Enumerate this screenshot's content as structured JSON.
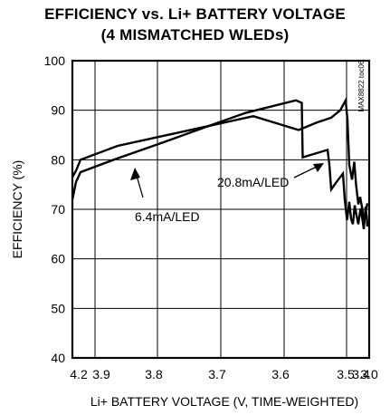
{
  "chart_data": {
    "type": "line",
    "title": "EFFICIENCY vs. Li+ BATTERY VOLTAGE",
    "subtitle": "(4 MISMATCHED WLEDs)",
    "xlabel": "Li+ BATTERY VOLTAGE (V, TIME-WEIGHTED)",
    "ylabel": "EFFICIENCY (%)",
    "watermark": "MAX8822 toc06",
    "x_tick_labels": [
      "4.2",
      "3.9",
      "3.8",
      "3.7",
      "3.6",
      "3.5",
      "3.4",
      "3.0"
    ],
    "y_ticks": [
      40,
      50,
      60,
      70,
      80,
      90,
      100
    ],
    "ylim": [
      40,
      100
    ],
    "grid": true,
    "series": [
      {
        "name": "6.4mA/LED",
        "points": [
          [
            0.0,
            72.0
          ],
          [
            4.0,
            75.5
          ],
          [
            9.0,
            77.5
          ],
          [
            50.0,
            80.3
          ],
          [
            100.0,
            83.5
          ],
          [
            150.0,
            86.8
          ],
          [
            192.0,
            89.5
          ],
          [
            247.0,
            92.0
          ],
          [
            253.5,
            91.5
          ],
          [
            254.5,
            80.5
          ],
          [
            282.0,
            82.0
          ],
          [
            284.0,
            79.0
          ],
          [
            286.0,
            74.0
          ],
          [
            293.0,
            75.8
          ],
          [
            299.0,
            77.2
          ],
          [
            301.0,
            72.0
          ],
          [
            303.5,
            67.8
          ],
          [
            306.0,
            71.5
          ],
          [
            308.0,
            68.0
          ],
          [
            310.0,
            67.0
          ],
          [
            312.0,
            70.8
          ],
          [
            314.0,
            68.8
          ],
          [
            316.0,
            67.0
          ],
          [
            318.5,
            70.2
          ],
          [
            320.5,
            68.0
          ],
          [
            322.0,
            66.0
          ],
          [
            324.0,
            70.5
          ],
          [
            325.5,
            68.0
          ],
          [
            326.0,
            66.5
          ]
        ]
      },
      {
        "name": "20.8mA/LED",
        "points": [
          [
            0.0,
            76.5
          ],
          [
            4.0,
            77.8
          ],
          [
            9.0,
            80.0
          ],
          [
            50.0,
            82.8
          ],
          [
            100.0,
            84.8
          ],
          [
            150.0,
            86.8
          ],
          [
            200.0,
            88.8
          ],
          [
            250.0,
            86.0
          ],
          [
            270.0,
            87.5
          ],
          [
            286.0,
            88.5
          ],
          [
            296.0,
            90.0
          ],
          [
            302.0,
            92.0
          ],
          [
            304.0,
            88.0
          ],
          [
            306.0,
            79.0
          ],
          [
            309.0,
            76.0
          ],
          [
            311.5,
            79.6
          ],
          [
            313.5,
            75.0
          ],
          [
            316.0,
            71.0
          ],
          [
            318.0,
            72.5
          ],
          [
            320.5,
            70.0
          ],
          [
            322.0,
            66.5
          ],
          [
            324.0,
            69.5
          ],
          [
            326.0,
            71.2
          ]
        ]
      }
    ],
    "annotations": [
      {
        "text": "6.4mA/LED",
        "series": "6.4mA/LED"
      },
      {
        "text": "20.8mA/LED",
        "series": "20.8mA/LED"
      }
    ]
  }
}
